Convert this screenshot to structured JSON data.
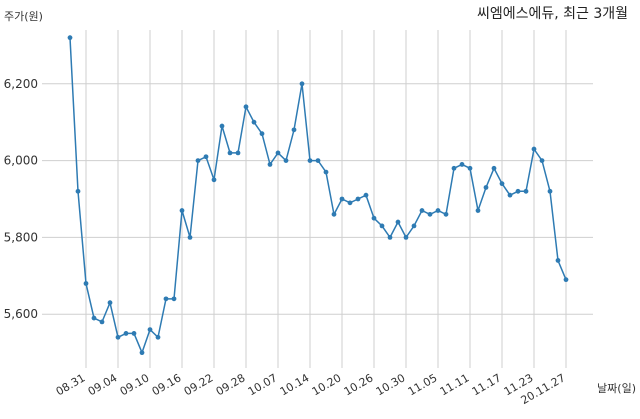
{
  "chart_data": {
    "type": "line",
    "title": "씨엠에스에듀, 최근 3개월",
    "ylabel": "주가(원)",
    "xlabel": "날짜(일)",
    "ylim": [
      5460,
      6340
    ],
    "yticks": [
      5600,
      5800,
      6000,
      6200
    ],
    "ytick_labels": [
      "5,600",
      "5,800",
      "6,000",
      "6,200"
    ],
    "xtick_labels": [
      "08.31",
      "09.04",
      "09.10",
      "09.16",
      "09.22",
      "09.28",
      "10.07",
      "10.14",
      "10.20",
      "10.26",
      "10.30",
      "11.05",
      "11.11",
      "11.17",
      "11.23",
      "20.11.27"
    ],
    "grid": true,
    "line_color": "#2e7bb3",
    "series": [
      {
        "values": [
          6320,
          5920,
          5680,
          5590,
          5580,
          5630,
          5540,
          5550,
          5550,
          5500,
          5560,
          5540,
          5640,
          5640,
          5870,
          5800,
          6000,
          6010,
          5950,
          6090,
          6020,
          6020,
          6140,
          6100,
          6070,
          5990,
          6020,
          6000,
          6080,
          6200,
          6000,
          6000,
          5970,
          5860,
          5900,
          5890,
          5900,
          5910,
          5850,
          5830,
          5800,
          5840,
          5800,
          5830,
          5870,
          5860,
          5870,
          5860,
          5980,
          5990,
          5980,
          5870,
          5930,
          5980,
          5940,
          5910,
          5920,
          5920,
          6030,
          6000,
          5920,
          5740,
          5690
        ]
      }
    ]
  }
}
